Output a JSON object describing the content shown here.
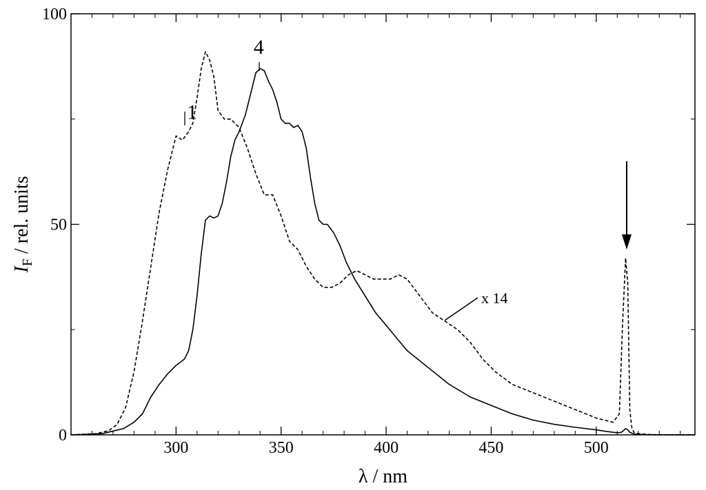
{
  "chart_data": {
    "type": "line",
    "xlabel": "λ / nm",
    "ylabel_main": "I",
    "ylabel_sub": "F",
    "ylabel_rest": " / rel. units",
    "xlim": [
      250,
      547
    ],
    "ylim": [
      0,
      100
    ],
    "x_ticks": [
      300,
      350,
      400,
      450,
      500
    ],
    "x_tick_labels": [
      "300",
      "350",
      "400",
      "450",
      "500"
    ],
    "y_ticks": [
      0,
      50,
      100
    ],
    "y_tick_labels": [
      "0",
      "50",
      "100"
    ],
    "grid": false,
    "series": [
      {
        "name": "1",
        "style": "dashed",
        "x": [
          250,
          262,
          268,
          272,
          276,
          280,
          284,
          288,
          292,
          296,
          300,
          303,
          306,
          308,
          310,
          312,
          314,
          316,
          318,
          320,
          323,
          326,
          330,
          334,
          338,
          342,
          346,
          350,
          354,
          358,
          362,
          366,
          370,
          374,
          378,
          382,
          386,
          390,
          394,
          398,
          402,
          406,
          410,
          416,
          422,
          428,
          434,
          440,
          446,
          452,
          460,
          470,
          480,
          490,
          500,
          508,
          511,
          512.5,
          514,
          515,
          516,
          517,
          518,
          520,
          525,
          535,
          547
        ],
        "y": [
          0,
          0.3,
          1.0,
          2.5,
          6.5,
          15,
          27,
          40,
          53,
          63,
          71,
          70,
          72,
          74,
          80,
          87,
          91,
          89,
          85,
          77,
          75,
          75,
          73,
          68,
          62,
          57,
          57,
          52,
          46,
          44,
          40,
          37,
          35,
          35,
          36,
          38,
          39,
          38,
          37,
          37,
          37,
          38,
          37,
          33,
          29,
          27,
          25,
          22,
          18,
          15,
          12,
          10,
          8,
          6,
          4,
          3,
          5,
          26,
          42,
          36,
          6,
          1.5,
          0.6,
          0.3,
          0.1,
          0,
          0
        ]
      },
      {
        "name": "4",
        "style": "solid",
        "x": [
          250,
          265,
          275,
          280,
          284,
          288,
          292,
          296,
          300,
          304,
          306,
          308,
          310,
          312,
          314,
          316,
          318,
          320,
          322,
          324,
          326,
          328,
          330,
          333,
          336,
          338,
          340,
          342,
          344,
          346,
          348,
          350,
          352,
          354,
          356,
          358,
          360,
          362,
          364,
          366,
          368,
          370,
          372,
          375,
          378,
          381,
          385,
          390,
          395,
          400,
          405,
          410,
          420,
          430,
          440,
          450,
          460,
          470,
          480,
          490,
          500,
          505,
          510,
          512,
          513,
          514,
          515,
          516,
          518,
          520,
          530,
          547
        ],
        "y": [
          0,
          0.3,
          1.5,
          3,
          5,
          9,
          12,
          14.5,
          16.5,
          18,
          20,
          25,
          33,
          43,
          51,
          52,
          51.5,
          52,
          55,
          60,
          66,
          70,
          72,
          76,
          82,
          86,
          87,
          86.5,
          84,
          82,
          79,
          75,
          74,
          74,
          73,
          73.5,
          72,
          68,
          61,
          55,
          51,
          50,
          50,
          48,
          45,
          41,
          37,
          33,
          29,
          26,
          23,
          20,
          16,
          12,
          9,
          7,
          5,
          3.5,
          2.5,
          1.8,
          1.2,
          0.8,
          0.5,
          0.6,
          1.0,
          1.5,
          1.2,
          0.6,
          0.2,
          0.1,
          0,
          0
        ]
      }
    ],
    "annotations": [
      {
        "text": "1",
        "x": 305,
        "y": 76
      },
      {
        "text": "4",
        "x": 339,
        "y": 90
      },
      {
        "text": "x 14"
      },
      {
        "type": "arrow",
        "x": 514.5,
        "y_from": 65,
        "y_to": 44
      }
    ]
  }
}
